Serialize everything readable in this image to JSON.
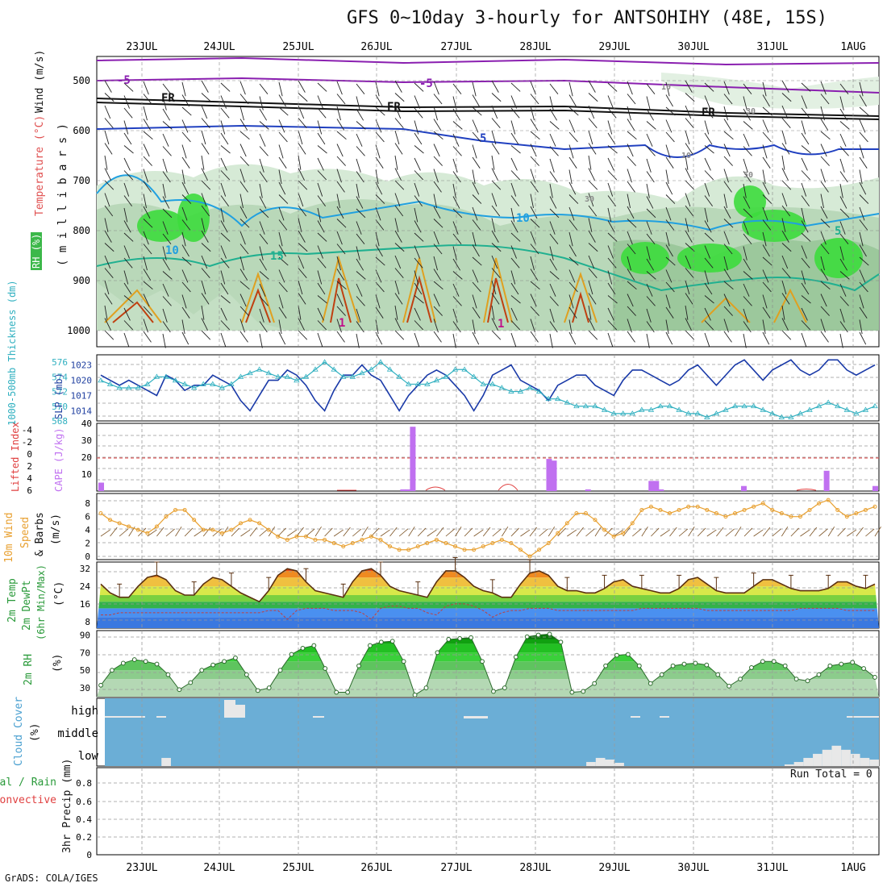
{
  "title": "GFS 0~10day 3-hourly for ANTSOHIHY (48E, 15S)",
  "footer": "GrADS: COLA/IGES",
  "dates": [
    "23JUL",
    "24JUL",
    "25JUL",
    "26JUL",
    "27JUL",
    "28JUL",
    "29JUL",
    "30JUL",
    "31JUL",
    "1AUG"
  ],
  "colors": {
    "rh": "#3cb84a",
    "temperature": "#d2691e",
    "wind_speed": "#e8a030",
    "slp": "#1a3aa8",
    "thickness": "#30b0c0",
    "cape": "#c070f0",
    "lifted": "#e04040",
    "cloud_bg": "#6baed6",
    "cloud_fill": "#e8e8e8"
  },
  "panels": {
    "upper_air": {
      "label_rh": "RH (%)",
      "label_temp": "Temperature (°C)",
      "label_wind": "Wind (m/s)",
      "label_mb": "( m i l l i b a r s )",
      "ticks": [
        "500",
        "600",
        "700",
        "800",
        "900",
        "1000"
      ],
      "contour_labels": [
        "-5",
        "-5",
        "FR",
        "FR",
        "FR",
        "5",
        "10",
        "10",
        "15",
        "1",
        "10",
        "30",
        "10",
        "30",
        "50",
        "5",
        "1"
      ]
    },
    "slp_thick": {
      "label_left": "1000-500mb Thickness (dm)",
      "label_right": "SLP (mb)",
      "thick_ticks": [
        "576",
        "574",
        "572",
        "570",
        "568"
      ],
      "slp_ticks": [
        "1023",
        "1020",
        "1017",
        "1014"
      ]
    },
    "cape_li": {
      "label_left": "Lifted Index",
      "label_right": "CAPE (J/kg)",
      "li_ticks": [
        "-4",
        "-2",
        "0",
        "2",
        "4",
        "6"
      ],
      "cape_ticks": [
        "40",
        "30",
        "20",
        "10"
      ]
    },
    "wind10": {
      "label_a": "10m Wind",
      "label_b": "Speed",
      "label_c": "& Barbs",
      "label_d": "(m/s)",
      "ticks": [
        "8",
        "6",
        "4",
        "2",
        "0"
      ]
    },
    "temp2m": {
      "label_a": "2m Temp",
      "label_b": "2m DewPt",
      "label_c": "(6hr Min/Max)",
      "label_d": "(°C)",
      "ticks": [
        "32",
        "24",
        "16",
        "8"
      ]
    },
    "rh2m": {
      "label_a": "2m RH",
      "label_b": "(%)",
      "ticks": [
        "90",
        "70",
        "50",
        "30"
      ]
    },
    "cloud": {
      "label_a": "Cloud Cover",
      "label_b": "(%)",
      "levels": [
        "high",
        "middle",
        "low"
      ]
    },
    "precip": {
      "label_a": "Total / Rain",
      "label_b": "Convective",
      "label_c": "3hr Precip (mm)",
      "ticks": [
        "0.8",
        "0.6",
        "0.4",
        "0.2",
        "0"
      ],
      "run_total": "Run Total = 0"
    }
  },
  "chart_data": [
    {
      "type": "line",
      "title": "SLP (mb)",
      "ylim": [
        1012,
        1025
      ],
      "series": [
        {
          "name": "SLP",
          "values": [
            1021,
            1020,
            1019,
            1020,
            1019,
            1018,
            1017,
            1021,
            1020,
            1018,
            1019,
            1019,
            1021,
            1020,
            1019,
            1016,
            1014,
            1017,
            1020,
            1020,
            1022,
            1021,
            1019,
            1016,
            1014,
            1018,
            1021,
            1021,
            1023,
            1021,
            1020,
            1017,
            1014,
            1017,
            1019,
            1021,
            1022,
            1021,
            1019,
            1017,
            1014,
            1017,
            1021,
            1022,
            1023,
            1020,
            1019,
            1018,
            1016,
            1019,
            1020,
            1021,
            1021,
            1019,
            1018,
            1017,
            1020,
            1022,
            1022,
            1021,
            1020,
            1019,
            1020,
            1022,
            1023,
            1021,
            1019,
            1021,
            1023,
            1024,
            1022,
            1020,
            1022,
            1023,
            1024,
            1022,
            1021,
            1022,
            1024,
            1024,
            1022,
            1021,
            1022,
            1023
          ]
        }
      ]
    },
    {
      "type": "line",
      "title": "1000-500mb Thickness (dm)",
      "ylim": [
        568,
        577
      ],
      "series": [
        {
          "name": "Thickness",
          "values": [
            573.5,
            573,
            572.5,
            572.5,
            572.5,
            573,
            574,
            574,
            573.5,
            573,
            572.5,
            573,
            573,
            572.5,
            573,
            574,
            574.5,
            575,
            574.5,
            574,
            574,
            573.5,
            574,
            575,
            576,
            575,
            574,
            574,
            574.5,
            575,
            576,
            575,
            574,
            573,
            573,
            573,
            573.5,
            574,
            575,
            575,
            574,
            573,
            573,
            572.5,
            572,
            572,
            572.5,
            572,
            571,
            571,
            570.5,
            570,
            570,
            570,
            569.5,
            569,
            569,
            569,
            569.5,
            569.5,
            570,
            570,
            569.5,
            569,
            569,
            568.5,
            569,
            569.5,
            570,
            570,
            570,
            569.5,
            569,
            568.5,
            568.5,
            569,
            569.5,
            570,
            570.5,
            570,
            569.5,
            569,
            569.5,
            570
          ]
        }
      ]
    },
    {
      "type": "bar",
      "title": "CAPE (J/kg)",
      "ylim": [
        0,
        40
      ],
      "series": [
        {
          "name": "CAPE",
          "values": [
            5,
            0,
            0,
            0,
            0,
            0,
            0,
            0,
            0,
            0,
            0,
            0,
            0,
            0,
            0,
            0,
            0,
            0,
            0,
            0,
            0,
            0,
            0,
            0,
            0,
            0,
            0,
            0,
            0,
            0,
            0,
            0,
            0,
            0,
            0,
            0,
            0,
            0,
            0,
            0,
            0,
            0,
            0,
            0,
            0,
            0,
            0,
            0,
            0,
            0,
            0,
            0,
            0,
            0,
            0,
            0,
            0,
            0,
            0,
            0,
            0,
            0,
            1,
            1,
            38,
            0,
            0,
            0,
            0,
            0,
            0,
            0,
            0,
            0,
            0,
            0,
            0,
            0,
            0,
            0,
            0,
            0,
            0,
            0,
            0,
            0,
            0,
            0,
            0,
            0,
            0,
            0,
            19,
            18,
            0,
            0,
            0,
            0,
            0,
            0,
            1,
            0,
            0,
            0,
            0,
            0,
            0,
            0,
            0,
            0,
            0,
            0,
            0,
            6,
            6,
            1,
            0,
            0,
            0,
            0,
            0,
            0,
            0,
            0,
            0,
            0,
            0,
            0,
            0,
            0,
            0,
            0,
            3,
            0,
            0,
            0,
            0,
            0,
            0,
            0,
            0,
            0,
            0,
            0,
            0,
            0,
            0,
            0,
            0,
            12,
            0,
            0,
            0,
            0,
            0,
            0,
            0,
            0,
            0,
            3
          ]
        }
      ]
    },
    {
      "type": "line",
      "title": "10m Wind Speed (m/s)",
      "ylim": [
        0,
        9
      ],
      "series": [
        {
          "name": "Speed",
          "values": [
            6.5,
            5.5,
            5,
            4.5,
            4,
            3.5,
            4.5,
            6,
            7,
            7,
            5.5,
            4,
            4,
            3.5,
            4,
            5,
            5.5,
            5,
            4,
            3,
            2.5,
            3,
            3,
            2.5,
            2.5,
            2,
            1.5,
            2,
            2.5,
            3,
            2.5,
            1.5,
            1,
            1,
            1.5,
            2,
            2.5,
            2,
            1.5,
            1,
            1,
            1.5,
            2,
            2.5,
            2,
            1,
            0,
            1,
            2,
            3.5,
            5,
            6.5,
            6.5,
            5.5,
            4,
            3,
            3.5,
            5,
            7,
            7.5,
            7,
            6.5,
            7,
            7.5,
            7.5,
            7,
            6.5,
            6,
            6.5,
            7,
            7.5,
            8,
            7,
            6.5,
            6,
            6,
            7,
            8,
            8.5,
            7,
            6,
            6.5,
            7,
            7.5
          ]
        }
      ]
    },
    {
      "type": "area",
      "title": "2m Temp (°C)",
      "ylim": [
        5,
        35
      ],
      "series": [
        {
          "name": "Temp",
          "values": [
            25,
            21,
            19,
            19,
            24,
            28,
            29,
            27,
            22,
            20,
            20,
            25,
            28,
            27,
            24,
            21,
            19,
            17,
            22,
            29,
            32,
            31,
            26,
            22,
            21,
            20,
            19,
            26,
            31,
            32,
            29,
            24,
            22,
            21,
            20,
            19,
            26,
            31,
            31,
            28,
            24,
            22,
            21,
            19,
            19,
            25,
            30,
            31,
            29,
            24,
            22,
            22,
            21,
            21,
            23,
            26,
            27,
            24,
            23,
            22,
            21,
            21,
            23,
            27,
            28,
            25,
            22,
            21,
            21,
            21,
            24,
            27,
            27,
            25,
            23,
            22,
            22,
            22,
            23,
            26,
            26,
            24,
            23,
            25
          ]
        },
        {
          "name": "DewPt",
          "values": [
            11,
            11,
            12,
            12,
            12,
            12,
            12,
            12,
            12,
            12,
            12,
            12,
            12,
            12,
            12,
            12,
            12,
            12,
            13,
            13,
            9,
            13,
            14,
            14,
            14,
            13,
            13,
            13,
            12,
            9,
            14,
            15,
            15,
            14,
            14,
            12,
            11,
            15,
            16,
            16,
            15,
            13,
            10,
            12,
            13,
            13,
            14,
            14,
            14,
            13,
            13,
            13,
            13,
            13,
            13,
            13,
            13,
            13,
            14,
            14,
            14,
            14,
            14,
            14,
            14,
            13,
            13,
            13,
            13,
            13,
            13,
            13,
            13,
            13,
            13,
            14,
            14,
            14,
            14,
            14,
            13,
            13,
            13,
            13
          ]
        }
      ]
    },
    {
      "type": "area",
      "title": "2m RH (%)",
      "ylim": [
        20,
        95
      ],
      "series": [
        {
          "name": "RH",
          "values": [
            33,
            50,
            58,
            62,
            60,
            57,
            45,
            28,
            36,
            50,
            56,
            60,
            64,
            45,
            27,
            30,
            50,
            68,
            75,
            78,
            52,
            25,
            25,
            55,
            78,
            82,
            83,
            60,
            22,
            30,
            70,
            85,
            86,
            87,
            60,
            26,
            30,
            65,
            88,
            90,
            91,
            82,
            25,
            26,
            35,
            55,
            67,
            68,
            55,
            35,
            45,
            55,
            57,
            58,
            56,
            45,
            32,
            40,
            53,
            60,
            60,
            55,
            40,
            38,
            45,
            55,
            57,
            59,
            52,
            42
          ]
        }
      ]
    },
    {
      "type": "bar",
      "title": "Cloud Cover low (%)",
      "ylim": [
        0,
        100
      ],
      "series": [
        {
          "name": "low",
          "values": [
            0,
            0,
            0,
            0,
            0,
            0,
            10,
            0,
            0,
            0,
            0,
            0,
            0,
            0,
            0,
            0,
            0,
            0,
            0,
            0,
            0,
            0,
            0,
            0,
            0,
            0,
            0,
            0,
            0,
            0,
            0,
            0,
            0,
            0,
            0,
            0,
            0,
            0,
            0,
            0,
            0,
            0,
            0,
            0,
            0,
            0,
            0,
            0,
            0,
            0,
            0,
            5,
            10,
            8,
            4,
            0,
            0,
            0,
            0,
            0,
            0,
            0,
            0,
            0,
            0,
            0,
            0,
            0,
            0,
            0,
            0,
            0,
            2,
            5,
            10,
            15,
            20,
            25,
            20,
            15,
            10,
            8
          ]
        }
      ]
    }
  ]
}
